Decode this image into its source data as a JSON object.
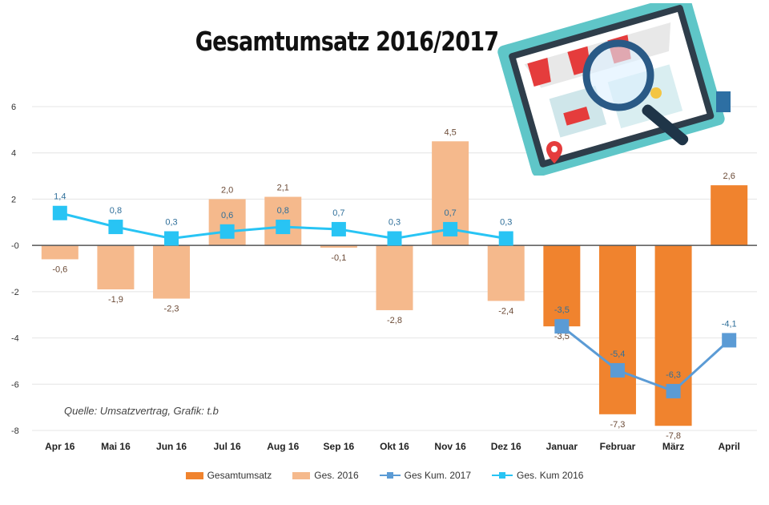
{
  "chart_data": {
    "type": "bar",
    "title": "Gesamtumsatz 2016/2017",
    "categories": [
      "Apr 16",
      "Mai 16",
      "Jun 16",
      "Jul 16",
      "Aug 16",
      "Sep 16",
      "Okt 16",
      "Nov 16",
      "Dez 16",
      "Januar",
      "Februar",
      "März",
      "April"
    ],
    "yticks": [
      "6",
      "4",
      "2",
      "-0",
      "-2",
      "-4",
      "-6",
      "-8"
    ],
    "ylim": [
      -8,
      6
    ],
    "grid": true,
    "legend_position": "bottom",
    "series": [
      {
        "name": "Gesamtumsatz",
        "kind": "bar",
        "color": "#f0832e",
        "values": [
          null,
          null,
          null,
          null,
          null,
          null,
          null,
          null,
          null,
          -3.5,
          -7.3,
          -7.8,
          2.6
        ],
        "labels": [
          "",
          "",
          "",
          "",
          "",
          "",
          "",
          "",
          "",
          "-3,5",
          "-7,3",
          "-7,8",
          "2,6"
        ]
      },
      {
        "name": "Ges. 2016",
        "kind": "bar",
        "color": "#f5b98c",
        "values": [
          -0.6,
          -1.9,
          -2.3,
          2.0,
          2.1,
          -0.1,
          -2.8,
          4.5,
          -2.4,
          null,
          null,
          null,
          null
        ],
        "labels": [
          "-0,6",
          "-1,9",
          "-2,3",
          "2,0",
          "2,1",
          "-0,1",
          "-2,8",
          "4,5",
          "-2,4",
          "",
          "",
          "",
          ""
        ]
      },
      {
        "name": "Ges Kum. 2017",
        "kind": "line",
        "color": "#5b9bd5",
        "values": [
          null,
          null,
          null,
          null,
          null,
          null,
          null,
          null,
          null,
          -3.5,
          -5.4,
          -6.3,
          -4.1
        ],
        "labels": [
          "",
          "",
          "",
          "",
          "",
          "",
          "",
          "",
          "",
          "-3,5",
          "-5,4",
          "-6,3",
          "-4,1"
        ]
      },
      {
        "name": "Ges. Kum 2016",
        "kind": "line",
        "color": "#28c4f4",
        "values": [
          1.4,
          0.8,
          0.3,
          0.6,
          0.8,
          0.7,
          0.3,
          0.7,
          0.3,
          null,
          null,
          null,
          null
        ],
        "labels": [
          "1,4",
          "0,8",
          "0,3",
          "0,6",
          "0,8",
          "0,7",
          "0,3",
          "0,7",
          "0,3",
          "",
          "",
          "",
          ""
        ]
      }
    ],
    "source": "Quelle: Umsatzvertrag, Grafik: t.b"
  },
  "colors": {
    "grid": "#e4e4e4",
    "axis": "#555555",
    "text": "#333333"
  }
}
